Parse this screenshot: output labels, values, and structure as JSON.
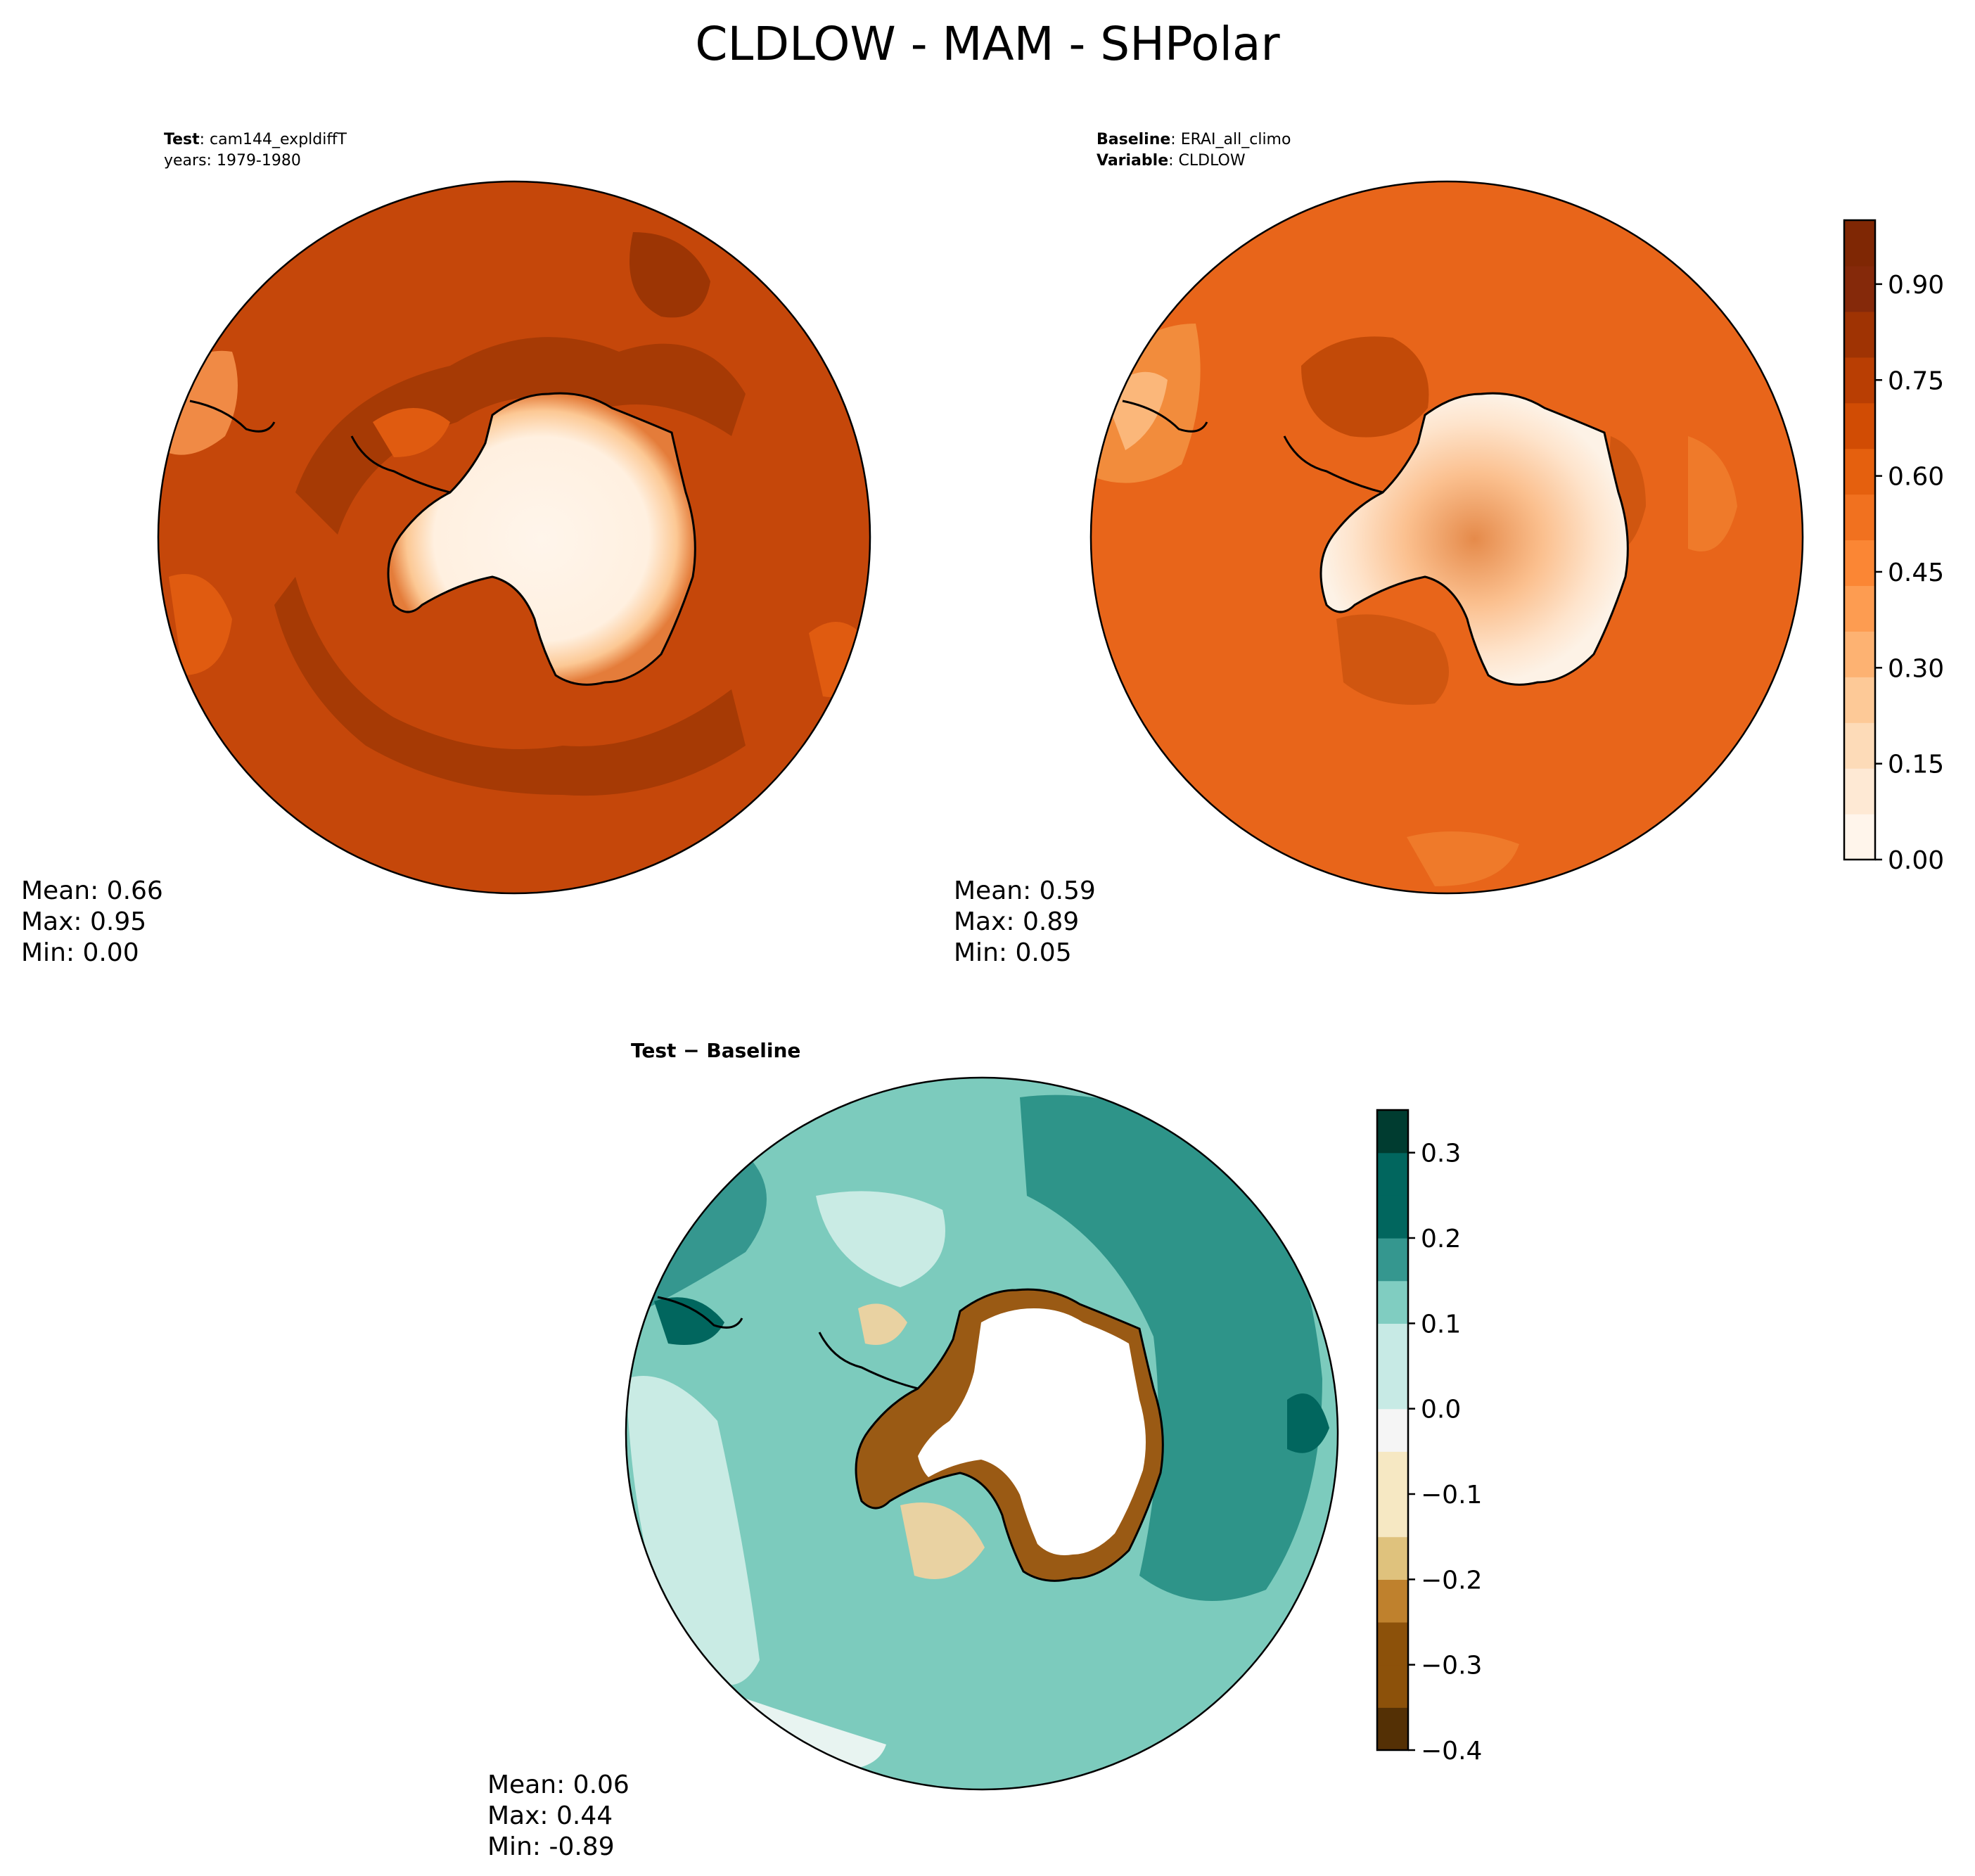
{
  "figure": {
    "title": "CLDLOW - MAM - SHPolar"
  },
  "panels": {
    "test": {
      "label_bold": "Test",
      "label_value": ": cam144_expldiffT",
      "line2": "years: 1979-1980",
      "stats": {
        "mean": "Mean:  0.66",
        "max": "Max:  0.95",
        "min": "Min:  0.00"
      }
    },
    "baseline": {
      "label_bold": "Baseline",
      "label_value": ": ERAI_all_climo",
      "line2_bold": "Variable",
      "line2_value": ": CLDLOW",
      "stats": {
        "mean": "Mean:  0.59",
        "max": "Max:  0.89",
        "min": "Min:  0.05"
      }
    },
    "diff": {
      "label_bold": "Test − Baseline",
      "stats": {
        "mean": "Mean:  0.06",
        "max": "Max:  0.44",
        "min": "Min: -0.89"
      }
    }
  },
  "colors": {
    "oranges": [
      "#fff5eb",
      "#fee9d4",
      "#fddbb8",
      "#fdc997",
      "#fdb272",
      "#fd9c51",
      "#fb8634",
      "#f1711f",
      "#e5600e",
      "#d14c04",
      "#b93e03",
      "#9f3303",
      "#85290a",
      "#7f2704"
    ],
    "brbg": [
      "#003c30",
      "#01665e",
      "#35978f",
      "#80cdc1",
      "#c7eae5",
      "#f5f5f5",
      "#f6e8c3",
      "#dfc27d",
      "#bf812d",
      "#8c510a",
      "#543005"
    ],
    "test_field": "#c5470a",
    "test_dark": "#a63a05",
    "test_light": "#e05b10",
    "base_field": "#e8651a",
    "base_dark": "#c24a08",
    "base_light": "#f28c3c",
    "diff_field": "#7ccbbd",
    "diff_dark": "#2e9489",
    "diff_light": "#c9ebe4",
    "diff_tan": "#e9d2a2",
    "diff_brown": "#9a5a14",
    "continent_interior": "#fff3e6",
    "continent_rim": "#f5b98a"
  },
  "chart_data": [
    {
      "type": "heatmap",
      "title": "Test : cam144_expldiffT",
      "subtitle": "years: 1979-1980",
      "projection": "south polar stereographic",
      "colormap": "Oranges",
      "summary": {
        "mean": 0.66,
        "max": 0.95,
        "min": 0.0
      }
    },
    {
      "type": "heatmap",
      "title": "Baseline : ERAI_all_climo",
      "subtitle": "Variable : CLDLOW",
      "projection": "south polar stereographic",
      "colormap": "Oranges",
      "summary": {
        "mean": 0.59,
        "max": 0.89,
        "min": 0.05
      },
      "colorbar": {
        "range": [
          0.0,
          1.0
        ],
        "ticks": [
          0.0,
          0.15,
          0.3,
          0.45,
          0.6,
          0.75,
          0.9
        ],
        "tick_labels": [
          "0.00",
          "0.15",
          "0.30",
          "0.45",
          "0.60",
          "0.75",
          "0.90"
        ],
        "levels": 14
      }
    },
    {
      "type": "heatmap",
      "title": "Test − Baseline",
      "projection": "south polar stereographic",
      "colormap": "BrBG",
      "summary": {
        "mean": 0.06,
        "max": 0.44,
        "min": -0.89
      },
      "colorbar": {
        "range": [
          -0.4,
          0.35
        ],
        "ticks": [
          -0.4,
          -0.3,
          -0.2,
          -0.1,
          0.0,
          0.1,
          0.2,
          0.3
        ],
        "tick_labels": [
          "−0.4",
          "−0.3",
          "−0.2",
          "−0.1",
          "0.0",
          "0.1",
          "0.2",
          "0.3"
        ],
        "levels": 15
      }
    }
  ]
}
